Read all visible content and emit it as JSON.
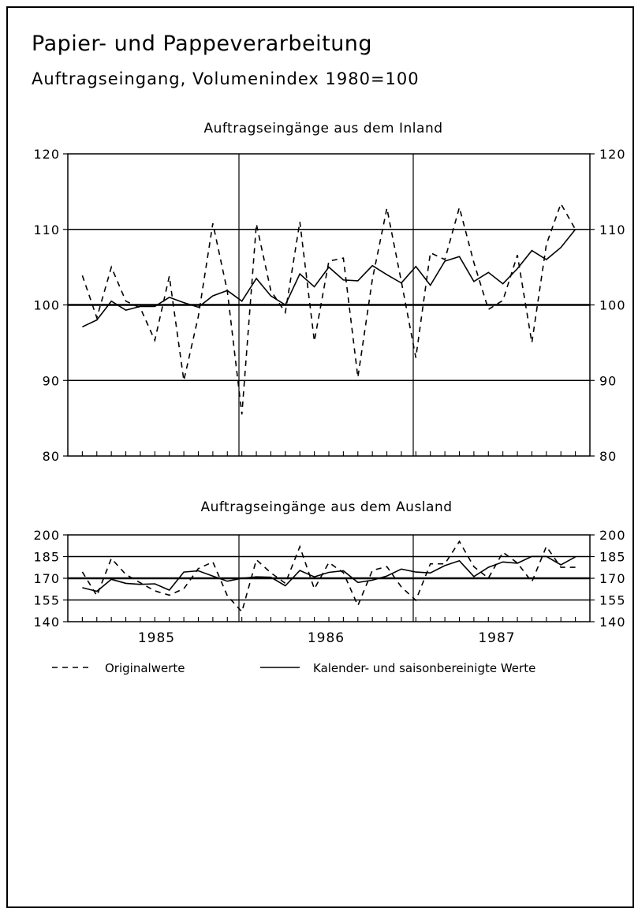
{
  "title": "Papier- und Pappeverarbeitung",
  "subtitle": "Auftragseingang, Volumenindex 1980=100",
  "legend": {
    "original": "Originalwerte",
    "adjusted": "Kalender- und saisonbereinigte Werte"
  },
  "chart_data": [
    {
      "type": "line",
      "title": "Auftragseingänge aus dem Inland",
      "years": [
        "1985",
        "1986",
        "1987"
      ],
      "yticks": [
        "80",
        "90",
        "100",
        "110",
        "120"
      ],
      "ylim": [
        80,
        120
      ],
      "months_span": 35,
      "grid": "major horizontal at 90, 100, 110; vertical at year boundaries",
      "series": [
        {
          "name": "Originalwerte",
          "style": "dashed",
          "values": [
            103.9,
            98.3,
            105.0,
            100.5,
            99.6,
            95.3,
            103.8,
            90.0,
            98.5,
            110.8,
            101.8,
            85.5,
            110.7,
            101.9,
            99.0,
            111.0,
            95.2,
            105.8,
            106.2,
            90.4,
            103.4,
            112.8,
            103.1,
            93.0,
            106.9,
            106.0,
            112.9,
            105.6,
            99.4,
            100.6,
            106.6,
            95.0,
            108.0,
            113.4,
            110.0
          ]
        },
        {
          "name": "Kalender- und saisonbereinigte Werte",
          "style": "solid",
          "values": [
            97.1,
            98.0,
            100.5,
            99.3,
            99.8,
            99.8,
            101.0,
            100.3,
            99.7,
            101.2,
            101.9,
            100.5,
            103.5,
            101.2,
            100.0,
            104.1,
            102.4,
            105.0,
            103.3,
            103.2,
            105.2,
            104.0,
            102.9,
            105.1,
            102.6,
            105.8,
            106.4,
            103.1,
            104.3,
            102.8,
            104.8,
            107.2,
            106.0,
            107.6,
            110.0
          ]
        }
      ]
    },
    {
      "type": "line",
      "title": "Auftragseingänge aus dem Ausland",
      "years": [
        "1985",
        "1986",
        "1987"
      ],
      "yticks": [
        "140",
        "155",
        "170",
        "185",
        "200"
      ],
      "ylim": [
        140,
        200
      ],
      "months_span": 35,
      "grid": "major horizontal at 155, 170, 185; vertical at year boundaries",
      "series": [
        {
          "name": "Originalwerte",
          "style": "dashed",
          "values": [
            174.4,
            158.0,
            183.7,
            172.6,
            166.9,
            161.3,
            158.3,
            162.8,
            176.7,
            181.3,
            157.9,
            146.9,
            182.8,
            173.8,
            166.5,
            191.9,
            162.7,
            180.9,
            173.9,
            151.1,
            175.5,
            178.0,
            164.0,
            154.8,
            180.0,
            180.0,
            195.5,
            178.0,
            170.1,
            188.0,
            180.6,
            167.5,
            192.0,
            177.6,
            177.6
          ]
        },
        {
          "name": "Kalender- und saisonbereinigte Werte",
          "style": "solid",
          "values": [
            163.5,
            161.0,
            169.3,
            166.5,
            165.8,
            166.2,
            161.8,
            174.3,
            175.2,
            171.5,
            168.0,
            170.0,
            171.0,
            170.7,
            164.8,
            175.4,
            171.0,
            174.1,
            175.2,
            167.1,
            168.7,
            171.6,
            176.4,
            174.3,
            173.7,
            178.8,
            182.1,
            171.2,
            177.6,
            181.3,
            180.4,
            185.1,
            185.1,
            179.3,
            184.8
          ]
        }
      ]
    }
  ]
}
